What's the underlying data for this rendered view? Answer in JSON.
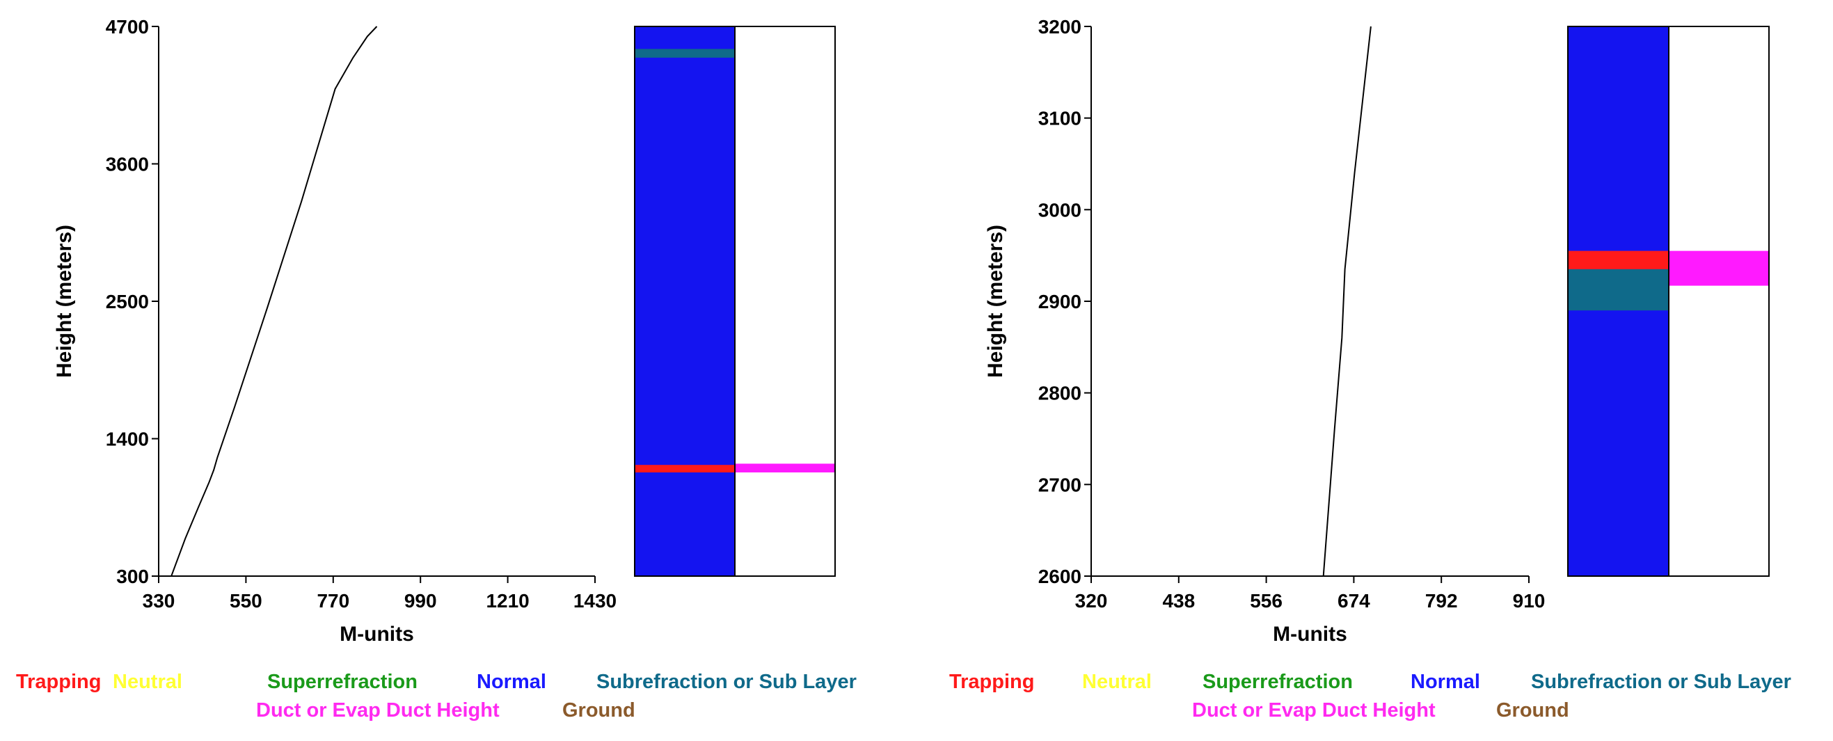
{
  "legend": {
    "row1": [
      {
        "label": "Trapping",
        "color": "#ff1a1a"
      },
      {
        "label": "Neutral",
        "color": "#ffff33"
      },
      {
        "label": "Superrefraction",
        "color": "#1a9a1a"
      },
      {
        "label": "Normal",
        "color": "#1a1aff"
      },
      {
        "label": "Subrefraction or Sub Layer",
        "color": "#0f6a8a"
      }
    ],
    "row2": [
      {
        "label": "Duct or Evap Duct Height",
        "color": "#ff2af0"
      },
      {
        "label": "Ground",
        "color": "#8b5a2b"
      }
    ]
  },
  "chart_data": [
    {
      "type": "line",
      "xlabel": "M-units",
      "ylabel": "Height (meters)",
      "xlim": [
        330,
        1430
      ],
      "ylim": [
        300,
        4700
      ],
      "xticks": [
        "330",
        "550",
        "770",
        "990",
        "1210",
        "1430"
      ],
      "yticks": [
        "300",
        "1400",
        "2500",
        "3600",
        "4700"
      ],
      "series": [
        {
          "x": [
            362,
            397,
            430,
            457,
            469,
            478,
            521,
            604,
            690,
            775,
            820,
            856,
            880
          ],
          "y": [
            300,
            600,
            850,
            1050,
            1150,
            1250,
            1650,
            2450,
            3300,
            4200,
            4450,
            4620,
            4700
          ],
          "color": "#000000"
        }
      ],
      "layer_bar": {
        "left_color": "#1414f0",
        "left_bands": [
          {
            "from": 4450,
            "to": 4520,
            "color": "#0f6a8a"
          },
          {
            "from": 1130,
            "to": 1190,
            "color": "#ff1a1a"
          }
        ],
        "right_bands": [
          {
            "from": 1130,
            "to": 1200,
            "color": "#ff1aff"
          }
        ]
      }
    },
    {
      "type": "line",
      "xlabel": "M-units",
      "ylabel": "Height (meters)",
      "xlim": [
        320,
        910
      ],
      "ylim": [
        2600,
        3200
      ],
      "xticks": [
        "320",
        "438",
        "556",
        "674",
        "792",
        "910"
      ],
      "yticks": [
        "2600",
        "2700",
        "2800",
        "2900",
        "3000",
        "3100",
        "3200"
      ],
      "series": [
        {
          "x": [
            633,
            648,
            658,
            662,
            675,
            686,
            697
          ],
          "y": [
            2600,
            2760,
            2860,
            2935,
            3040,
            3120,
            3200
          ],
          "color": "#000000"
        }
      ],
      "layer_bar": {
        "left_color": "#1414f0",
        "left_bands": [
          {
            "from": 2935,
            "to": 2955,
            "color": "#ff1a1a"
          },
          {
            "from": 2890,
            "to": 2935,
            "color": "#0f6a8a"
          }
        ],
        "right_bands": [
          {
            "from": 2917,
            "to": 2955,
            "color": "#ff1aff"
          }
        ]
      }
    }
  ]
}
